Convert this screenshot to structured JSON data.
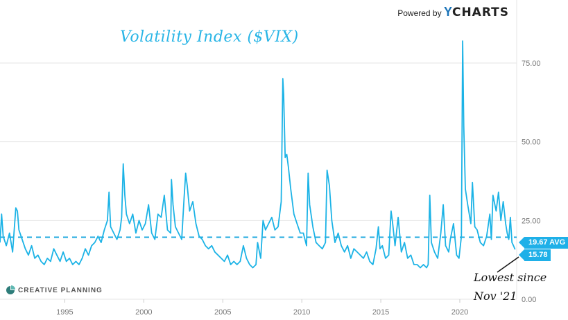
{
  "header": {
    "powered_by": "Powered by",
    "brand_y": "Y",
    "brand": "CHARTS"
  },
  "watermark": {
    "company": "CREATIVE PLANNING"
  },
  "annotation": {
    "line1": "Lowest since",
    "line2": "Nov '21"
  },
  "colors": {
    "series": "#1cb3e6",
    "avg": "#1fa9df",
    "grid": "#e6e6e6",
    "tick": "#777777"
  },
  "chart_data": {
    "type": "line",
    "title": "Volatility Index ($VIX)",
    "xlabel": "",
    "ylabel": "",
    "x_ticks": [
      "1995",
      "2000",
      "2005",
      "2010",
      "2015",
      "2020"
    ],
    "y_ticks": [
      "0.00",
      "25.00",
      "50.00",
      "75.00"
    ],
    "ylim": [
      0,
      95
    ],
    "xlim": [
      1990.9,
      2023.6
    ],
    "grid": "horizontal",
    "reference_line": {
      "label": "19.67 AVG",
      "value": 19.67
    },
    "last_value": {
      "label": "15.78",
      "value": 15.78
    },
    "series": [
      {
        "points": [
          [
            1990.9,
            18
          ],
          [
            1991.0,
            27
          ],
          [
            1991.1,
            20
          ],
          [
            1991.3,
            17
          ],
          [
            1991.5,
            21
          ],
          [
            1991.7,
            15
          ],
          [
            1991.9,
            29
          ],
          [
            1992.0,
            28
          ],
          [
            1992.1,
            22
          ],
          [
            1992.3,
            19
          ],
          [
            1992.5,
            16
          ],
          [
            1992.7,
            14
          ],
          [
            1992.9,
            17
          ],
          [
            1993.1,
            13
          ],
          [
            1993.3,
            14
          ],
          [
            1993.5,
            12
          ],
          [
            1993.7,
            11
          ],
          [
            1993.9,
            13
          ],
          [
            1994.1,
            12
          ],
          [
            1994.3,
            16
          ],
          [
            1994.5,
            14
          ],
          [
            1994.7,
            12
          ],
          [
            1994.9,
            15
          ],
          [
            1995.1,
            12
          ],
          [
            1995.3,
            13
          ],
          [
            1995.5,
            11
          ],
          [
            1995.7,
            12
          ],
          [
            1995.9,
            11
          ],
          [
            1996.1,
            13
          ],
          [
            1996.3,
            16
          ],
          [
            1996.5,
            14
          ],
          [
            1996.7,
            17
          ],
          [
            1996.9,
            18
          ],
          [
            1997.1,
            20
          ],
          [
            1997.3,
            18
          ],
          [
            1997.5,
            22
          ],
          [
            1997.7,
            25
          ],
          [
            1997.8,
            34
          ],
          [
            1997.9,
            23
          ],
          [
            1998.1,
            21
          ],
          [
            1998.3,
            19
          ],
          [
            1998.5,
            22
          ],
          [
            1998.6,
            26
          ],
          [
            1998.7,
            43
          ],
          [
            1998.8,
            33
          ],
          [
            1998.9,
            27
          ],
          [
            1999.1,
            24
          ],
          [
            1999.3,
            27
          ],
          [
            1999.5,
            21
          ],
          [
            1999.7,
            25
          ],
          [
            1999.9,
            22
          ],
          [
            2000.1,
            24
          ],
          [
            2000.3,
            30
          ],
          [
            2000.5,
            21
          ],
          [
            2000.7,
            19
          ],
          [
            2000.9,
            27
          ],
          [
            2001.1,
            26
          ],
          [
            2001.3,
            33
          ],
          [
            2001.5,
            22
          ],
          [
            2001.7,
            21
          ],
          [
            2001.75,
            38
          ],
          [
            2001.85,
            30
          ],
          [
            2002.0,
            23
          ],
          [
            2002.2,
            21
          ],
          [
            2002.4,
            19
          ],
          [
            2002.55,
            32
          ],
          [
            2002.65,
            40
          ],
          [
            2002.75,
            36
          ],
          [
            2002.9,
            28
          ],
          [
            2003.1,
            31
          ],
          [
            2003.3,
            24
          ],
          [
            2003.5,
            20
          ],
          [
            2003.7,
            19
          ],
          [
            2003.9,
            17
          ],
          [
            2004.1,
            16
          ],
          [
            2004.3,
            17
          ],
          [
            2004.5,
            15
          ],
          [
            2004.7,
            14
          ],
          [
            2004.9,
            13
          ],
          [
            2005.1,
            12
          ],
          [
            2005.3,
            14
          ],
          [
            2005.5,
            11
          ],
          [
            2005.7,
            12
          ],
          [
            2005.9,
            11
          ],
          [
            2006.1,
            12
          ],
          [
            2006.3,
            17
          ],
          [
            2006.5,
            13
          ],
          [
            2006.7,
            11
          ],
          [
            2006.9,
            10
          ],
          [
            2007.1,
            11
          ],
          [
            2007.2,
            18
          ],
          [
            2007.4,
            13
          ],
          [
            2007.55,
            25
          ],
          [
            2007.7,
            22
          ],
          [
            2007.9,
            24
          ],
          [
            2008.1,
            26
          ],
          [
            2008.3,
            22
          ],
          [
            2008.5,
            23
          ],
          [
            2008.7,
            31
          ],
          [
            2008.8,
            70
          ],
          [
            2008.85,
            65
          ],
          [
            2008.95,
            45
          ],
          [
            2009.05,
            46
          ],
          [
            2009.15,
            42
          ],
          [
            2009.3,
            35
          ],
          [
            2009.5,
            27
          ],
          [
            2009.7,
            24
          ],
          [
            2009.9,
            21
          ],
          [
            2010.1,
            21
          ],
          [
            2010.3,
            17
          ],
          [
            2010.4,
            40
          ],
          [
            2010.5,
            30
          ],
          [
            2010.7,
            23
          ],
          [
            2010.9,
            18
          ],
          [
            2011.1,
            17
          ],
          [
            2011.3,
            16
          ],
          [
            2011.5,
            18
          ],
          [
            2011.6,
            41
          ],
          [
            2011.75,
            36
          ],
          [
            2011.9,
            25
          ],
          [
            2012.1,
            18
          ],
          [
            2012.3,
            21
          ],
          [
            2012.5,
            17
          ],
          [
            2012.7,
            15
          ],
          [
            2012.9,
            17
          ],
          [
            2013.1,
            13
          ],
          [
            2013.3,
            16
          ],
          [
            2013.5,
            15
          ],
          [
            2013.7,
            14
          ],
          [
            2013.9,
            13
          ],
          [
            2014.1,
            15
          ],
          [
            2014.3,
            12
          ],
          [
            2014.5,
            11
          ],
          [
            2014.7,
            16
          ],
          [
            2014.85,
            23
          ],
          [
            2014.95,
            16
          ],
          [
            2015.1,
            17
          ],
          [
            2015.3,
            13
          ],
          [
            2015.5,
            14
          ],
          [
            2015.65,
            28
          ],
          [
            2015.75,
            24
          ],
          [
            2015.9,
            17
          ],
          [
            2016.1,
            26
          ],
          [
            2016.3,
            15
          ],
          [
            2016.5,
            18
          ],
          [
            2016.7,
            13
          ],
          [
            2016.9,
            14
          ],
          [
            2017.1,
            11
          ],
          [
            2017.3,
            11
          ],
          [
            2017.5,
            10
          ],
          [
            2017.7,
            11
          ],
          [
            2017.9,
            10
          ],
          [
            2018.0,
            11
          ],
          [
            2018.1,
            33
          ],
          [
            2018.2,
            18
          ],
          [
            2018.4,
            15
          ],
          [
            2018.6,
            13
          ],
          [
            2018.8,
            21
          ],
          [
            2018.95,
            30
          ],
          [
            2019.1,
            17
          ],
          [
            2019.3,
            15
          ],
          [
            2019.4,
            19
          ],
          [
            2019.6,
            24
          ],
          [
            2019.8,
            14
          ],
          [
            2019.95,
            13
          ],
          [
            2020.1,
            20
          ],
          [
            2020.18,
            82
          ],
          [
            2020.25,
            55
          ],
          [
            2020.35,
            35
          ],
          [
            2020.5,
            30
          ],
          [
            2020.7,
            24
          ],
          [
            2020.8,
            37
          ],
          [
            2020.95,
            23
          ],
          [
            2021.1,
            22
          ],
          [
            2021.3,
            18
          ],
          [
            2021.5,
            17
          ],
          [
            2021.7,
            20
          ],
          [
            2021.9,
            27
          ],
          [
            2022.0,
            19
          ],
          [
            2022.1,
            33
          ],
          [
            2022.3,
            28
          ],
          [
            2022.45,
            34
          ],
          [
            2022.6,
            25
          ],
          [
            2022.75,
            31
          ],
          [
            2022.9,
            24
          ],
          [
            2023.0,
            21
          ],
          [
            2023.1,
            19
          ],
          [
            2023.2,
            26
          ],
          [
            2023.3,
            18
          ],
          [
            2023.4,
            17
          ],
          [
            2023.5,
            15.78
          ]
        ]
      }
    ]
  }
}
